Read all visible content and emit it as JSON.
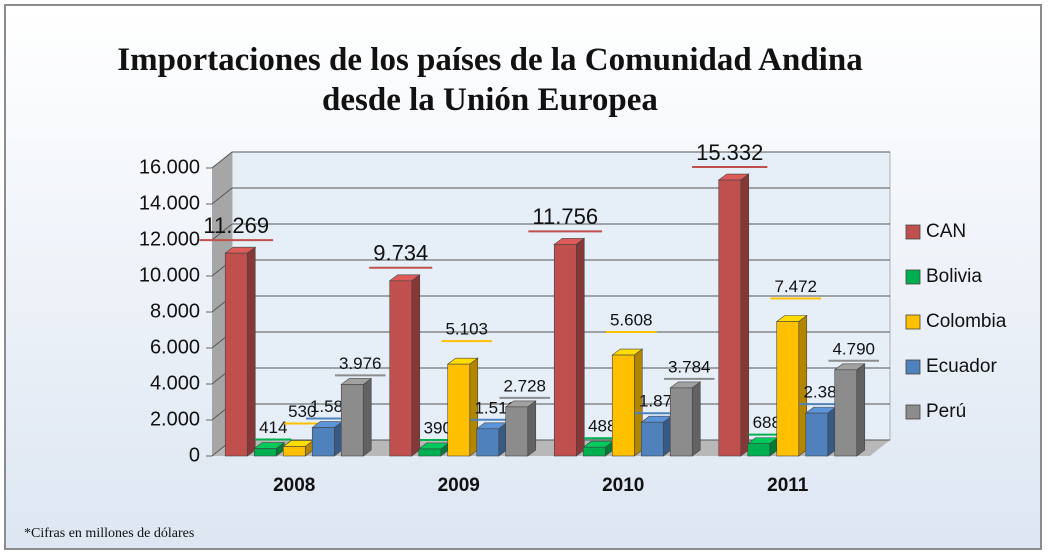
{
  "chart_data": {
    "type": "bar3d",
    "title": "Importaciones de los países de la Comunidad Andina desde la Unión Europea",
    "note": "*Cifras en millones de dólares",
    "categories": [
      "2008",
      "2009",
      "2010",
      "2011"
    ],
    "series": [
      {
        "name": "CAN",
        "color": "#c0504d",
        "values": [
          11269,
          9734,
          11756,
          15332
        ],
        "value_labels": [
          "11.269",
          "9.734",
          "11.756",
          "15.332"
        ]
      },
      {
        "name": "Bolivia",
        "color": "#00b050",
        "values": [
          414,
          390,
          488,
          688
        ],
        "value_labels": [
          "414",
          "390",
          "488",
          "688"
        ]
      },
      {
        "name": "Colombia",
        "color": "#ffc000",
        "values": [
          530,
          5103,
          5608,
          7472
        ],
        "value_labels": [
          "530",
          "5.103",
          "5.608",
          "7.472"
        ]
      },
      {
        "name": "Ecuador",
        "color": "#4f81bd",
        "values": [
          1580,
          1513,
          1877,
          2382
        ],
        "value_labels": [
          "1.580",
          "1.513",
          "1.877",
          "2.382"
        ]
      },
      {
        "name": "Perú",
        "color": "#8c8c8c",
        "values": [
          3976,
          2728,
          3784,
          4790
        ],
        "value_labels": [
          "3.976",
          "2.728",
          "3.784",
          "4.790"
        ]
      }
    ],
    "ylim": [
      0,
      16000
    ],
    "yticks": [
      0,
      {
        "value": 2000,
        "label": "2.000"
      },
      {
        "value": 4000,
        "label": "4.000"
      },
      {
        "value": 6000,
        "label": "6.000"
      },
      {
        "value": 8000,
        "label": "8.000"
      },
      {
        "value": 10000,
        "label": "10.000"
      },
      {
        "value": 12000,
        "label": "12.000"
      },
      {
        "value": 14000,
        "label": "14.000"
      },
      {
        "value": 16000,
        "label": "16.000"
      }
    ],
    "grid": true,
    "legend": "right"
  }
}
